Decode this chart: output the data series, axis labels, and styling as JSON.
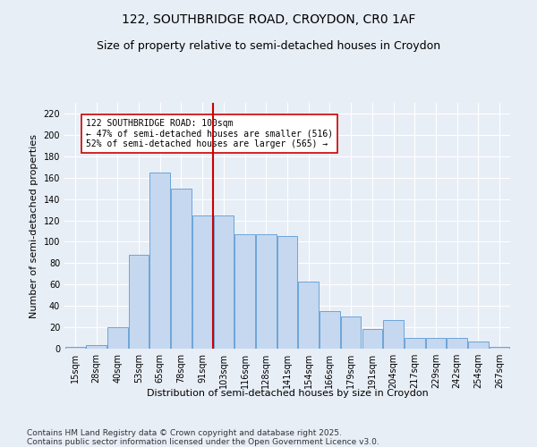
{
  "title": "122, SOUTHBRIDGE ROAD, CROYDON, CR0 1AF",
  "subtitle": "Size of property relative to semi-detached houses in Croydon",
  "xlabel": "Distribution of semi-detached houses by size in Croydon",
  "ylabel": "Number of semi-detached properties",
  "categories": [
    "15sqm",
    "28sqm",
    "40sqm",
    "53sqm",
    "65sqm",
    "78sqm",
    "91sqm",
    "103sqm",
    "116sqm",
    "128sqm",
    "141sqm",
    "154sqm",
    "166sqm",
    "179sqm",
    "191sqm",
    "204sqm",
    "217sqm",
    "229sqm",
    "242sqm",
    "254sqm",
    "267sqm"
  ],
  "values": [
    2,
    3,
    20,
    88,
    165,
    150,
    125,
    125,
    107,
    107,
    105,
    63,
    35,
    30,
    18,
    27,
    10,
    10,
    10,
    7,
    2
  ],
  "bar_color": "#c5d8ef",
  "bar_edge_color": "#5b9bd5",
  "property_bin_index": 7,
  "vline_color": "#cc0000",
  "annotation_text": "122 SOUTHBRIDGE ROAD: 100sqm\n← 47% of semi-detached houses are smaller (516)\n52% of semi-detached houses are larger (565) →",
  "annotation_box_color": "#ffffff",
  "annotation_box_edge": "#cc0000",
  "ylim": [
    0,
    230
  ],
  "yticks": [
    0,
    20,
    40,
    60,
    80,
    100,
    120,
    140,
    160,
    180,
    200,
    220
  ],
  "footer": "Contains HM Land Registry data © Crown copyright and database right 2025.\nContains public sector information licensed under the Open Government Licence v3.0.",
  "background_color": "#e8eef6",
  "plot_bg_color": "#e8eef6",
  "grid_color": "#ffffff",
  "title_fontsize": 10,
  "subtitle_fontsize": 9,
  "axis_label_fontsize": 8,
  "tick_fontsize": 7,
  "footer_fontsize": 6.5,
  "annotation_fontsize": 7
}
